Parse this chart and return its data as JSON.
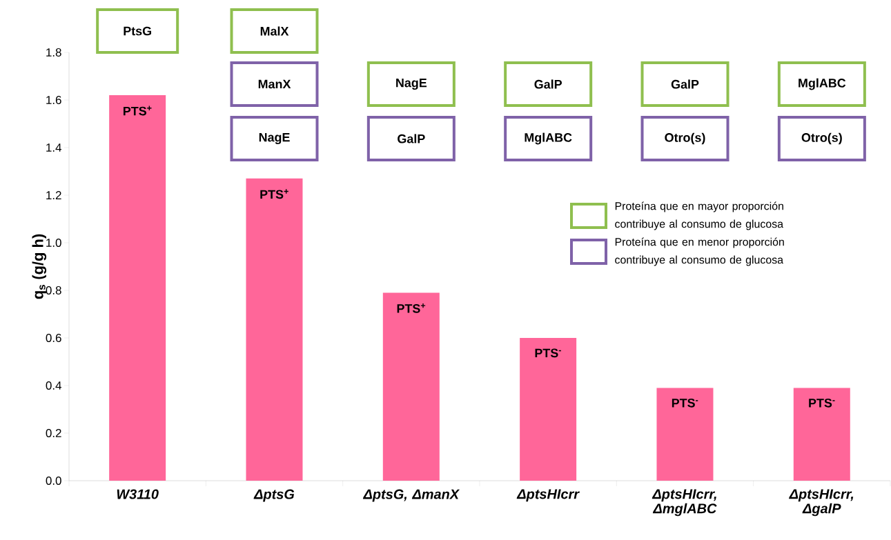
{
  "chart_data": {
    "type": "bar",
    "ylabel": "q$_{s}$ (g/g h)",
    "categories": [
      "W3110",
      "ΔptsG",
      "ΔptsG, ΔmanX",
      "ΔptsHIcrr",
      "ΔptsHIcrr, ΔmglABC",
      "ΔptsHIcrr, ΔgalP"
    ],
    "values": [
      1.62,
      1.27,
      0.79,
      0.6,
      0.39,
      0.39
    ],
    "value_labels": [
      "PTS$^{+}$",
      "PTS$^{+}$",
      "PTS$^{+}$",
      "PTS$^{-}$",
      "PTS$^{-}$",
      "PTS$^{-}$"
    ],
    "color": "#ff6699",
    "ylim": [
      0,
      1.8
    ],
    "yticks": [
      {
        "value": 0,
        "label": "0.0"
      },
      0.2,
      0.4,
      0.6,
      0.8,
      {
        "value": 1,
        "label": "1.0"
      },
      1.2,
      1.4,
      1.6,
      1.8
    ],
    "annotations": [
      "PtsG",
      "MalX",
      "ManX",
      "NagE",
      "NagE",
      "GalP",
      "GalP",
      "MglABC",
      "GalP",
      "Otro(s)",
      "MglABC",
      "Otro(s)",
      "Proteína que en mayor proporción contribuye al consumo de glucosa",
      "Proteína que en menor proporción contribuye al consumo de glucosa"
    ]
  }
}
